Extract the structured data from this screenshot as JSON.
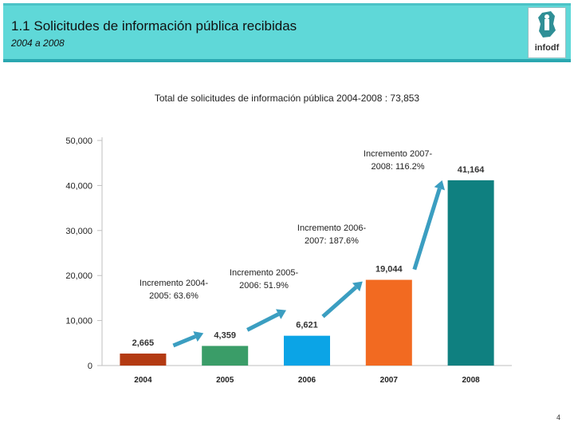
{
  "header": {
    "title": "1.1 Solicitudes de información pública recibidas",
    "subtitle": "2004 a 2008",
    "logo_text": "infodf"
  },
  "annotations": [
    {
      "label": "Incremento 2004-2005: 63.6%"
    },
    {
      "label": "Incremento 2005-2006: 51.9%"
    },
    {
      "label": "Incremento 2006-2007: 187.6%"
    },
    {
      "label": "Incremento 2007-2008: 116.2%"
    }
  ],
  "colors": {
    "header_bg": "#5fd8d8",
    "bar_2004": "#b33a12",
    "bar_2005": "#3a9d68",
    "bar_2006": "#0ba4e6",
    "bar_2007": "#f26a21",
    "bar_2008": "#0f8080",
    "arrow": "#3b9ec1"
  },
  "page_number": "4",
  "chart_data": {
    "type": "bar",
    "title": "Total de solicitudes de información pública 2004-2008 : 73,853",
    "categories": [
      "2004",
      "2005",
      "2006",
      "2007",
      "2008"
    ],
    "values": [
      2665,
      4359,
      6621,
      19044,
      41164
    ],
    "value_labels": [
      "2,665",
      "4,359",
      "6,621",
      "19,044",
      "41,164"
    ],
    "yticks": [
      "0",
      "10,000",
      "20,000",
      "30,000",
      "40,000",
      "50,000"
    ],
    "ylim": [
      0,
      50000
    ],
    "xlabel": "",
    "ylabel": ""
  }
}
